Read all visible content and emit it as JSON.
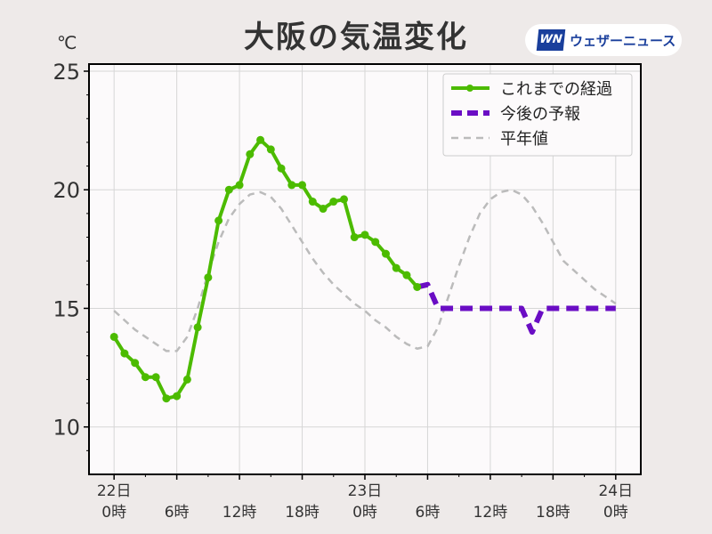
{
  "title": "大阪の気温変化",
  "unit": "℃",
  "logo": {
    "mark": "WN",
    "text": "ウェザーニュース"
  },
  "chart_data": {
    "type": "line",
    "title": "大阪の気温変化",
    "ylabel": "℃",
    "ylim": [
      8,
      25.3
    ],
    "xlim": [
      -2.4,
      50.4
    ],
    "grid": true,
    "legend_position": "top-right",
    "yticks": [
      10,
      15,
      20,
      25
    ],
    "xticks": [
      {
        "hour": 0,
        "label1": "22日",
        "label2": "0時"
      },
      {
        "hour": 6,
        "label1": "",
        "label2": "6時"
      },
      {
        "hour": 12,
        "label1": "",
        "label2": "12時"
      },
      {
        "hour": 18,
        "label1": "",
        "label2": "18時"
      },
      {
        "hour": 24,
        "label1": "23日",
        "label2": "0時"
      },
      {
        "hour": 30,
        "label1": "",
        "label2": "6時"
      },
      {
        "hour": 36,
        "label1": "",
        "label2": "12時"
      },
      {
        "hour": 42,
        "label1": "",
        "label2": "18時"
      },
      {
        "hour": 48,
        "label1": "24日",
        "label2": "0時"
      }
    ],
    "series": [
      {
        "name": "これまでの経過",
        "color": "#4cbb00",
        "style": "solid-markers",
        "x": [
          0,
          1,
          2,
          3,
          4,
          5,
          6,
          7,
          8,
          9,
          10,
          11,
          12,
          13,
          14,
          15,
          16,
          17,
          18,
          19,
          20,
          21,
          22,
          23,
          24,
          25,
          26,
          27,
          28,
          29
        ],
        "y": [
          13.8,
          13.1,
          12.7,
          12.1,
          12.1,
          11.2,
          11.3,
          12.0,
          14.2,
          16.3,
          18.7,
          20.0,
          20.2,
          21.5,
          22.1,
          21.7,
          20.9,
          20.2,
          20.2,
          19.5,
          19.2,
          19.5,
          19.6,
          18.0,
          18.1,
          17.8,
          17.3,
          16.7,
          16.4,
          15.9
        ]
      },
      {
        "name": "今後の予報",
        "color": "#6a0dc4",
        "style": "dashed-thick",
        "x": [
          29,
          30,
          31,
          32,
          33,
          34,
          35,
          36,
          37,
          38,
          39,
          40,
          41,
          42,
          43,
          44,
          45,
          46,
          47,
          48
        ],
        "y": [
          15.9,
          16.0,
          15.0,
          15.0,
          15.0,
          15.0,
          15.0,
          15.0,
          15.0,
          15.0,
          15.0,
          14.0,
          15.0,
          15.0,
          15.0,
          15.0,
          15.0,
          15.0,
          15.0,
          15.0
        ]
      },
      {
        "name": "平年値",
        "color": "#bbbbbb",
        "style": "dashed-thin",
        "x": [
          0,
          1,
          2,
          3,
          4,
          5,
          6,
          7,
          8,
          9,
          10,
          11,
          12,
          13,
          14,
          15,
          16,
          17,
          18,
          19,
          20,
          21,
          22,
          23,
          24,
          25,
          26,
          27,
          28,
          29,
          30,
          31,
          32,
          33,
          34,
          35,
          36,
          37,
          38,
          39,
          40,
          41,
          42,
          43,
          44,
          45,
          46,
          47,
          48
        ],
        "y": [
          14.9,
          14.5,
          14.1,
          13.8,
          13.5,
          13.2,
          13.2,
          13.8,
          15.0,
          16.5,
          17.8,
          18.8,
          19.4,
          19.8,
          19.9,
          19.7,
          19.2,
          18.5,
          17.8,
          17.1,
          16.5,
          16.0,
          15.6,
          15.2,
          14.9,
          14.5,
          14.2,
          13.8,
          13.5,
          13.3,
          13.4,
          14.2,
          15.5,
          16.8,
          18.0,
          19.0,
          19.6,
          19.9,
          20.0,
          19.8,
          19.3,
          18.6,
          17.8,
          17.0,
          16.6,
          16.2,
          15.8,
          15.5,
          15.2
        ]
      }
    ]
  }
}
